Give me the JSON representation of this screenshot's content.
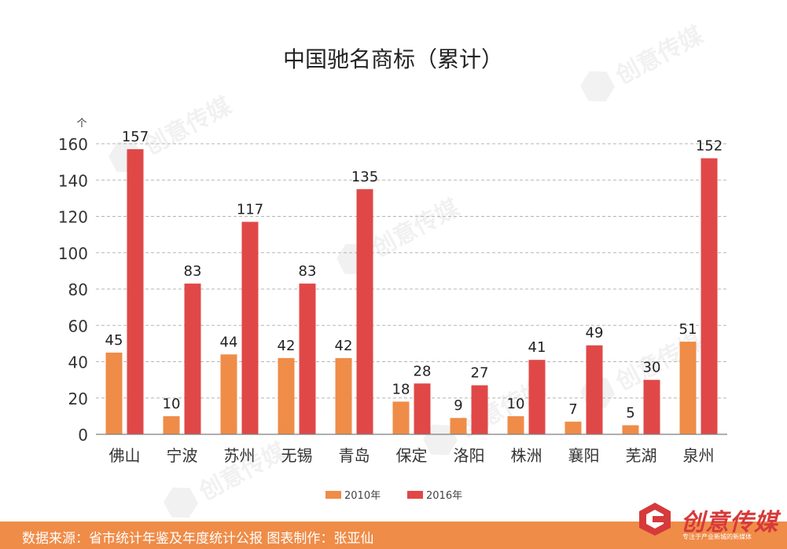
{
  "chart_data": {
    "type": "bar",
    "title": "中国驰名商标（累计）",
    "ylabel": "个",
    "xlabel": "",
    "ylim": [
      0,
      160
    ],
    "yticks": [
      0,
      20,
      40,
      60,
      80,
      100,
      120,
      140,
      160
    ],
    "grid": true,
    "legend_position": "bottom-center",
    "categories": [
      "佛山",
      "宁波",
      "苏州",
      "无锡",
      "青岛",
      "保定",
      "洛阳",
      "株洲",
      "襄阳",
      "芜湖",
      "泉州"
    ],
    "series": [
      {
        "name": "2010年",
        "color": "#ef8c48",
        "values": [
          45,
          10,
          44,
          42,
          42,
          18,
          9,
          10,
          7,
          5,
          51
        ]
      },
      {
        "name": "2016年",
        "color": "#e04848",
        "values": [
          157,
          83,
          117,
          83,
          135,
          28,
          27,
          41,
          49,
          30,
          152
        ]
      }
    ]
  },
  "footer": {
    "source": "数据来源：省市统计年鉴及年度统计公报  图表制作：张亚仙"
  },
  "brand": {
    "name": "创意传媒",
    "tagline": "专注于产业新城的新媒体"
  },
  "watermark": {
    "text": "创意传媒"
  }
}
